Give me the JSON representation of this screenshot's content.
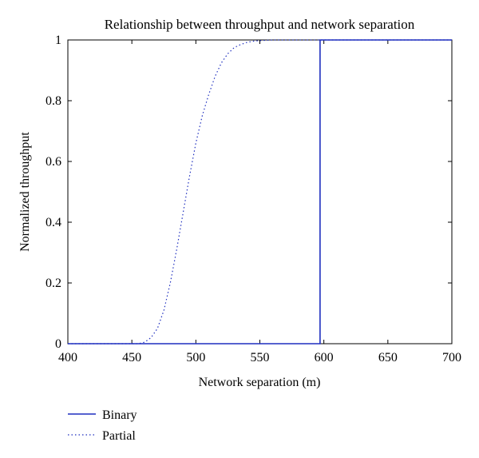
{
  "chart_data": {
    "type": "line",
    "title": "Relationship between throughput and network separation",
    "xlabel": "Network separation (m)",
    "ylabel": "Normalized throughput",
    "xlim": [
      400,
      700
    ],
    "ylim": [
      0,
      1
    ],
    "xticks": [
      400,
      450,
      500,
      550,
      600,
      650,
      700
    ],
    "yticks": [
      0,
      0.2,
      0.4,
      0.6,
      0.8,
      1
    ],
    "xtick_labels": [
      "400",
      "450",
      "500",
      "550",
      "600",
      "650",
      "700"
    ],
    "ytick_labels": [
      "0",
      "0.2",
      "0.4",
      "0.6",
      "0.8",
      "1"
    ],
    "grid": false,
    "legend_position": "below-left",
    "series": [
      {
        "name": "Binary",
        "style": "solid",
        "color": "#1f2fbf",
        "x": [
          400,
          597,
          597,
          700
        ],
        "y": [
          0,
          0,
          1,
          1
        ]
      },
      {
        "name": "Partial",
        "style": "dotted",
        "color": "#1f2fbf",
        "x": [
          400,
          455,
          460,
          465,
          470,
          475,
          480,
          485,
          490,
          495,
          500,
          505,
          510,
          515,
          520,
          525,
          530,
          535,
          540,
          545,
          550,
          560,
          570,
          580,
          600,
          650,
          700
        ],
        "y": [
          0,
          0,
          0.005,
          0.02,
          0.05,
          0.11,
          0.2,
          0.31,
          0.43,
          0.55,
          0.66,
          0.75,
          0.82,
          0.88,
          0.925,
          0.955,
          0.975,
          0.985,
          0.992,
          0.996,
          0.998,
          1,
          1,
          1,
          1,
          1,
          1
        ]
      }
    ]
  }
}
